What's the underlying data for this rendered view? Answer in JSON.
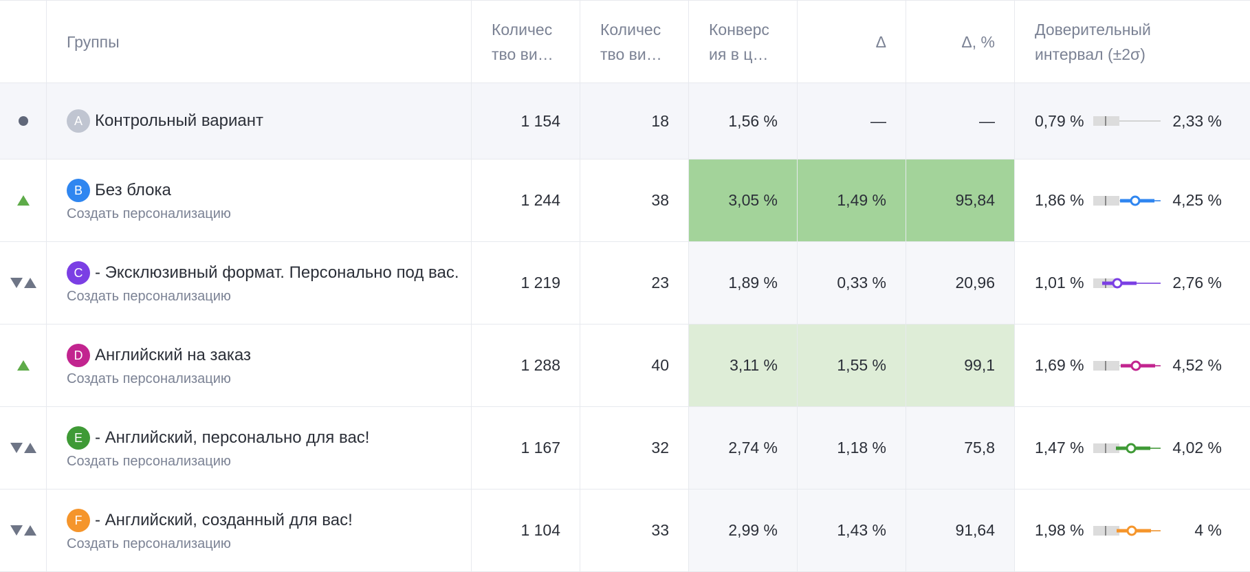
{
  "header": {
    "groups": "Группы",
    "col1_l1": "Количес",
    "col1_l2": "тво ви…",
    "col2_l1": "Количес",
    "col2_l2": "тво ви…",
    "col3_l1": "Конверс",
    "col3_l2": "ия в ц…",
    "delta": "Δ",
    "delta_pct": "Δ, %",
    "ci_l1": "Доверительный",
    "ci_l2": "интервал (±2σ)"
  },
  "colors": {
    "strong_green": "#a3d39a",
    "light_green": "#deedd7",
    "neutral": "#f6f7fa",
    "control_row": "#f5f6fa",
    "ci_range": "#dcdcdc"
  },
  "rows": [
    {
      "letter": "A",
      "color": "#c0c5d1",
      "indicator": "dot",
      "name": "Контрольный вариант",
      "sub": "",
      "visitors": "1 154",
      "conversions": "18",
      "conv_rate": "1,56 %",
      "delta": "—",
      "delta_pct": "—",
      "ci_low": "0,79 %",
      "ci_high": "2,33 %",
      "highlight": "none",
      "ci_marker": false,
      "ci_point": 0.3
    },
    {
      "letter": "B",
      "color": "#2f86f0",
      "indicator": "up",
      "name": "Без блока",
      "sub": "Создать персонализацию",
      "visitors": "1 244",
      "conversions": "38",
      "conv_rate": "3,05 %",
      "delta": "1,49 %",
      "delta_pct": "95,84",
      "ci_low": "1,86 %",
      "ci_high": "4,25 %",
      "highlight": "strong",
      "ci_marker": true,
      "ci_point": 0.62
    },
    {
      "letter": "C",
      "color": "#7b3fe4",
      "indicator": "both",
      "name": "- Эксклюзивный формат. Персонально под вас.",
      "sub": "Создать персонализацию",
      "visitors": "1 219",
      "conversions": "23",
      "conv_rate": "1,89 %",
      "delta": "0,33 %",
      "delta_pct": "20,96",
      "ci_low": "1,01 %",
      "ci_high": "2,76 %",
      "highlight": "neutral",
      "ci_marker": true,
      "ci_point": 0.36
    },
    {
      "letter": "D",
      "color": "#c2248f",
      "indicator": "up",
      "name": "Английский на заказ",
      "sub": "Создать персонализацию",
      "visitors": "1 288",
      "conversions": "40",
      "conv_rate": "3,11 %",
      "delta": "1,55 %",
      "delta_pct": "99,1",
      "ci_low": "1,69 %",
      "ci_high": "4,52 %",
      "highlight": "light",
      "ci_marker": true,
      "ci_point": 0.63
    },
    {
      "letter": "E",
      "color": "#3f9a36",
      "indicator": "both",
      "name": "- Английский, персонально для вас!",
      "sub": "Создать персонализацию",
      "visitors": "1 167",
      "conversions": "32",
      "conv_rate": "2,74 %",
      "delta": "1,18 %",
      "delta_pct": "75,8",
      "ci_low": "1,47 %",
      "ci_high": "4,02 %",
      "highlight": "neutral",
      "ci_marker": true,
      "ci_point": 0.56
    },
    {
      "letter": "F",
      "color": "#f5952b",
      "indicator": "both",
      "name": "- Английский, созданный для вас!",
      "sub": "Создать персонализацию",
      "visitors": "1 104",
      "conversions": "33",
      "conv_rate": "2,99 %",
      "delta": "1,43 %",
      "delta_pct": "91,64",
      "ci_low": "1,98 %",
      "ci_high": "4 %",
      "highlight": "neutral",
      "ci_marker": true,
      "ci_point": 0.57
    }
  ]
}
